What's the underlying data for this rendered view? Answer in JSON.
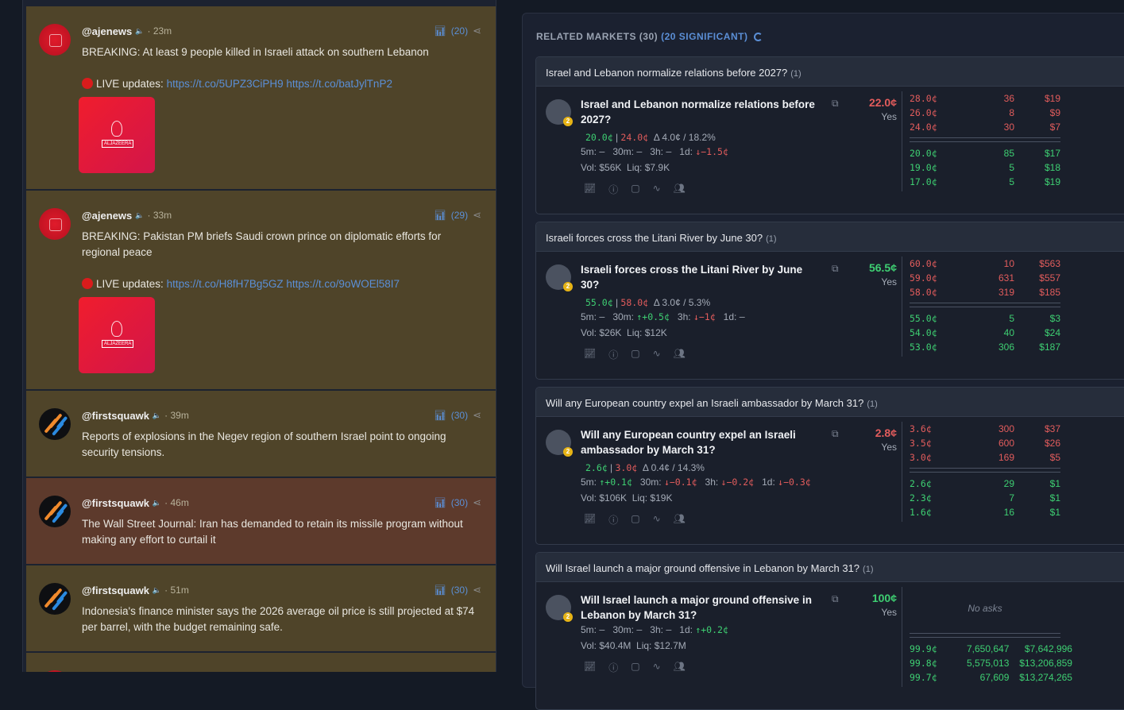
{
  "feed": {
    "tweets": [
      {
        "handle": "@ajenews",
        "avatar": "aljazeera",
        "time": "· 23m",
        "count": "(20)",
        "text": "BREAKING: At least 9 people killed in Israeli attack on southern Lebanon",
        "live": "LIVE updates: ",
        "links": [
          "https://t.co/5UPZ3CiPH9",
          "https://t.co/batJylTnP2"
        ],
        "thumb_logo": "ALJAZEERA",
        "highlight": false
      },
      {
        "handle": "@ajenews",
        "avatar": "aljazeera",
        "time": "· 33m",
        "count": "(29)",
        "text": "BREAKING: Pakistan PM briefs Saudi crown prince on diplomatic efforts for regional peace",
        "live": "LIVE updates: ",
        "links": [
          "https://t.co/H8fH7Bg5GZ",
          "https://t.co/9oWOEl58I7"
        ],
        "thumb_logo": "ALJAZEERA",
        "highlight": false
      },
      {
        "handle": "@firstsquawk",
        "avatar": "firstsquawk",
        "time": "· 39m",
        "count": "(30)",
        "text": "Reports of explosions in the Negev region of southern Israel point to ongoing security tensions.",
        "highlight": false
      },
      {
        "handle": "@firstsquawk",
        "avatar": "firstsquawk",
        "time": "· 46m",
        "count": "(30)",
        "text": "The Wall Street Journal: Iran has demanded to retain its missile program without making any effort to curtail it",
        "highlight": true
      },
      {
        "handle": "@firstsquawk",
        "avatar": "firstsquawk",
        "time": "· 51m",
        "count": "(30)",
        "text": "Indonesia's finance minister says the 2026 average oil price is still projected at $74 per barrel, with the budget remaining safe.",
        "highlight": false
      },
      {
        "avatar": "aljazeera",
        "highlight": false
      }
    ]
  },
  "markets": {
    "title": "RELATED MARKETS (30)",
    "significant": "(20 SIGNIFICANT)",
    "colors": {
      "bid": "#3ecf72",
      "ask": "#e25c5c",
      "link": "#5b8fd6"
    },
    "cards": [
      {
        "group": "Israel and Lebanon normalize relations before 2027?",
        "group_count": "(1)",
        "title": "Israel and Lebanon normalize relations before 2027?",
        "badge": "2",
        "bid": "20.0¢",
        "ask": "24.0¢",
        "delta": "Δ 4.0¢ / 18.2%",
        "changes": [
          {
            "label": "5m:",
            "value": "–",
            "dir": "none"
          },
          {
            "label": "30m:",
            "value": "–",
            "dir": "none"
          },
          {
            "label": "3h:",
            "value": "–",
            "dir": "none"
          },
          {
            "label": "1d:",
            "value": "↓−1.5¢",
            "dir": "down"
          }
        ],
        "vol": "Vol: $56K",
        "liq": "Liq: $7.9K",
        "price": "22.0¢",
        "price_dir": "down",
        "outcome": "Yes",
        "asks": [
          [
            "28.0¢",
            "36",
            "$19"
          ],
          [
            "26.0¢",
            "8",
            "$9"
          ],
          [
            "24.0¢",
            "30",
            "$7"
          ]
        ],
        "bids": [
          [
            "20.0¢",
            "85",
            "$17"
          ],
          [
            "19.0¢",
            "5",
            "$18"
          ],
          [
            "17.0¢",
            "5",
            "$19"
          ]
        ]
      },
      {
        "group": "Israeli forces cross the Litani River by June 30?",
        "group_count": "(1)",
        "title": "Israeli forces cross the Litani River by June 30?",
        "badge": "2",
        "bid": "55.0¢",
        "ask": "58.0¢",
        "delta": "Δ 3.0¢ / 5.3%",
        "changes": [
          {
            "label": "5m:",
            "value": "–",
            "dir": "none"
          },
          {
            "label": "30m:",
            "value": "↑+0.5¢",
            "dir": "up"
          },
          {
            "label": "3h:",
            "value": "↓−1¢",
            "dir": "down"
          },
          {
            "label": "1d:",
            "value": "–",
            "dir": "none"
          }
        ],
        "vol": "Vol: $26K",
        "liq": "Liq: $12K",
        "price": "56.5¢",
        "price_dir": "up",
        "outcome": "Yes",
        "asks": [
          [
            "60.0¢",
            "10",
            "$563"
          ],
          [
            "59.0¢",
            "631",
            "$557"
          ],
          [
            "58.0¢",
            "319",
            "$185"
          ]
        ],
        "bids": [
          [
            "55.0¢",
            "5",
            "$3"
          ],
          [
            "54.0¢",
            "40",
            "$24"
          ],
          [
            "53.0¢",
            "306",
            "$187"
          ]
        ]
      },
      {
        "group": "Will any European country expel an Israeli ambassador by March 31?",
        "group_count": "(1)",
        "title": "Will any European country expel an Israeli ambassador by March 31?",
        "badge": "2",
        "bid": "2.6¢",
        "ask": "3.0¢",
        "delta": "Δ 0.4¢ / 14.3%",
        "changes": [
          {
            "label": "5m:",
            "value": "↑+0.1¢",
            "dir": "up"
          },
          {
            "label": "30m:",
            "value": "↓−0.1¢",
            "dir": "down"
          },
          {
            "label": "3h:",
            "value": "↓−0.2¢",
            "dir": "down"
          },
          {
            "label": "1d:",
            "value": "↓−0.3¢",
            "dir": "down"
          }
        ],
        "vol": "Vol: $106K",
        "liq": "Liq: $19K",
        "price": "2.8¢",
        "price_dir": "down",
        "outcome": "Yes",
        "asks": [
          [
            "3.6¢",
            "300",
            "$37"
          ],
          [
            "3.5¢",
            "600",
            "$26"
          ],
          [
            "3.0¢",
            "169",
            "$5"
          ]
        ],
        "bids": [
          [
            "2.6¢",
            "29",
            "$1"
          ],
          [
            "2.3¢",
            "7",
            "$1"
          ],
          [
            "1.6¢",
            "16",
            "$1"
          ]
        ]
      },
      {
        "group": "Will Israel launch a major ground offensive in Lebanon by March 31?",
        "group_count": "(1)",
        "title": "Will Israel launch a major ground offensive in Lebanon by March 31?",
        "badge": "2",
        "changes": [
          {
            "label": "5m:",
            "value": "–",
            "dir": "none"
          },
          {
            "label": "30m:",
            "value": "–",
            "dir": "none"
          },
          {
            "label": "3h:",
            "value": "–",
            "dir": "none"
          },
          {
            "label": "1d:",
            "value": "↑+0.2¢",
            "dir": "up"
          }
        ],
        "vol": "Vol: $40.4M",
        "liq": "Liq: $12.7M",
        "price": "100¢",
        "price_dir": "up",
        "outcome": "Yes",
        "no_asks": "No asks",
        "asks": [],
        "bids": [
          [
            "99.9¢",
            "7,650,647",
            "$7,642,996"
          ],
          [
            "99.8¢",
            "5,575,013",
            "$13,206,859"
          ],
          [
            "99.7¢",
            "67,609",
            "$13,274,265"
          ]
        ]
      }
    ]
  }
}
